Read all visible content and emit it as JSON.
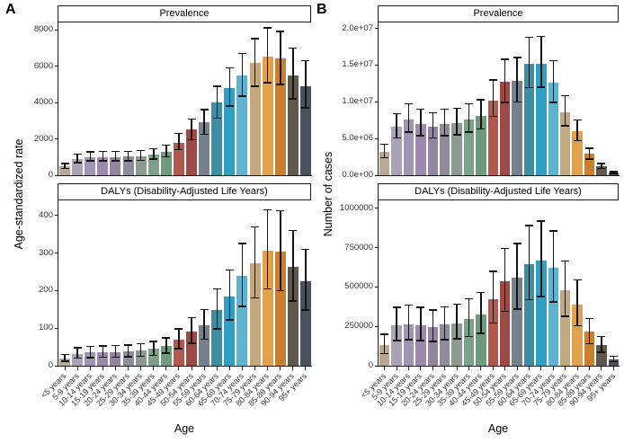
{
  "figure": {
    "panel_a_label": "A",
    "panel_b_label": "B",
    "left_y_axis_label": "Age-standardized rate",
    "right_y_axis_label": "Number of cases",
    "x_axis_label": "Age"
  },
  "palette": {
    "bar_colors_by_age": [
      "#b7a794",
      "#a8a3b6",
      "#9e94b3",
      "#9d89ab",
      "#93849f",
      "#8e8c9a",
      "#8c9a91",
      "#7da189",
      "#6f9a7c",
      "#b2584e",
      "#9c4a43",
      "#75828e",
      "#3e8ea3",
      "#2f9fc4",
      "#5fb3d0",
      "#c3a87d",
      "#e0a14b",
      "#c87f2f",
      "#5f584f",
      "#49525c"
    ],
    "error_bar_color": "#141414",
    "axis_color": "#1a1a1a"
  },
  "chart_data": [
    {
      "id": "a-prevalence-rate",
      "type": "bar",
      "panel": "A",
      "title": "Prevalence",
      "ylabel": "Age-standardized rate",
      "xlabel": "Age",
      "grid": false,
      "error_bars": true,
      "ylim": [
        0,
        8400
      ],
      "ytick_values": [
        0,
        2000,
        4000,
        6000,
        8000
      ],
      "ytick_labels": [
        "0",
        "2000",
        "4000",
        "6000",
        "8000"
      ],
      "categories": [
        "<5 years",
        "5-9 years",
        "10-14 years",
        "15-19 years",
        "20-24 years",
        "25-29 years",
        "30-34 years",
        "35-39 years",
        "40-44 years",
        "45-49 years",
        "50-54 years",
        "55-59 years",
        "60-64 years",
        "65-69 years",
        "70-74 years",
        "75-79 years",
        "80-84 years",
        "85-89 years",
        "90-94 years",
        "95+ years"
      ],
      "values": [
        500,
        900,
        1000,
        1000,
        1000,
        1020,
        1050,
        1150,
        1300,
        1800,
        2500,
        2900,
        4000,
        4800,
        5500,
        6200,
        6500,
        6400,
        5500,
        4900
      ],
      "err_low": [
        380,
        700,
        780,
        780,
        780,
        790,
        820,
        900,
        1010,
        1400,
        1950,
        2250,
        3150,
        3800,
        4350,
        4900,
        5100,
        5000,
        4200,
        3700
      ],
      "err_high": [
        650,
        1150,
        1280,
        1300,
        1300,
        1320,
        1350,
        1470,
        1650,
        2300,
        3100,
        3600,
        4900,
        5900,
        6700,
        7500,
        8100,
        7900,
        7000,
        6300
      ]
    },
    {
      "id": "a-dalys-rate",
      "type": "bar",
      "panel": "A",
      "title": "DALYs (Disability-Adjusted Life Years)",
      "ylabel": "Age-standardized rate",
      "xlabel": "Age",
      "grid": false,
      "error_bars": true,
      "ylim": [
        0,
        440
      ],
      "ytick_values": [
        0,
        100,
        200,
        300,
        400
      ],
      "ytick_labels": [
        "0",
        "100",
        "200",
        "300",
        "400"
      ],
      "categories": [
        "<5 years",
        "5-9 years",
        "10-14 years",
        "15-19 years",
        "20-24 years",
        "25-29 years",
        "30-34 years",
        "35-39 years",
        "40-44 years",
        "45-49 years",
        "50-54 years",
        "55-59 years",
        "60-64 years",
        "65-69 years",
        "70-74 years",
        "75-79 years",
        "80-84 years",
        "85-89 years",
        "90-94 years",
        "95+ years"
      ],
      "values": [
        20,
        32,
        36,
        36,
        37,
        38,
        40,
        45,
        52,
        70,
        92,
        108,
        148,
        185,
        238,
        272,
        305,
        303,
        262,
        225
      ],
      "err_low": [
        12,
        20,
        22,
        23,
        23,
        24,
        25,
        28,
        33,
        45,
        60,
        70,
        98,
        122,
        158,
        180,
        205,
        200,
        172,
        148
      ],
      "err_high": [
        30,
        48,
        52,
        53,
        54,
        55,
        58,
        64,
        74,
        98,
        128,
        150,
        205,
        255,
        325,
        370,
        415,
        412,
        360,
        310
      ]
    },
    {
      "id": "b-prevalence-cases",
      "type": "bar",
      "panel": "B",
      "title": "Prevalence",
      "ylabel": "Number of cases",
      "xlabel": "Age",
      "grid": false,
      "error_bars": true,
      "ylim": [
        0,
        20800000
      ],
      "ytick_values": [
        0,
        5000000,
        10000000,
        15000000,
        20000000
      ],
      "ytick_labels": [
        "0.0e+00",
        "5.0e+06",
        "1.0e+07",
        "1.5e+07",
        "2.0e+07"
      ],
      "categories": [
        "<5 years",
        "5-9 years",
        "10-14 years",
        "15-19 years",
        "20-24 years",
        "25-29 years",
        "30-34 years",
        "35-39 years",
        "40-44 years",
        "45-49 years",
        "50-54 years",
        "55-59 years",
        "60-64 years",
        "65-69 years",
        "70-74 years",
        "75-79 years",
        "80-84 years",
        "85-89 years",
        "90-94 years",
        "95+ years"
      ],
      "values": [
        3200000,
        6600000,
        7600000,
        7000000,
        6600000,
        7000000,
        7100000,
        7600000,
        8100000,
        10200000,
        12700000,
        12800000,
        15200000,
        15200000,
        12600000,
        8600000,
        6000000,
        2900000,
        1200000,
        350000
      ],
      "err_low": [
        2400000,
        5100000,
        5900000,
        5400000,
        5100000,
        5400000,
        5500000,
        5900000,
        6300000,
        8000000,
        9900000,
        10000000,
        11900000,
        12000000,
        9900000,
        6700000,
        4700000,
        2200000,
        900000,
        250000
      ],
      "err_high": [
        4200000,
        8400000,
        9700000,
        9000000,
        8500000,
        9000000,
        9100000,
        9700000,
        10300000,
        13000000,
        15800000,
        16000000,
        18800000,
        18900000,
        15600000,
        10800000,
        7500000,
        3700000,
        1600000,
        500000
      ]
    },
    {
      "id": "b-dalys-cases",
      "type": "bar",
      "panel": "B",
      "title": "DALYs (Disability-Adjusted Life Years)",
      "ylabel": "Number of cases",
      "xlabel": "Age",
      "grid": false,
      "error_bars": true,
      "ylim": [
        0,
        1050000
      ],
      "ytick_values": [
        0,
        250000,
        500000,
        750000,
        1000000
      ],
      "ytick_labels": [
        "0",
        "250000",
        "500000",
        "750000",
        "1000000"
      ],
      "categories": [
        "<5 years",
        "5-9 years",
        "10-14 years",
        "15-19 years",
        "20-24 years",
        "25-29 years",
        "30-34 years",
        "35-39 years",
        "40-44 years",
        "45-49 years",
        "50-54 years",
        "55-59 years",
        "60-64 years",
        "65-69 years",
        "70-74 years",
        "75-79 years",
        "80-84 years",
        "85-89 years",
        "90-94 years",
        "95+ years"
      ],
      "values": [
        130000,
        255000,
        265000,
        255000,
        245000,
        260000,
        270000,
        295000,
        325000,
        425000,
        535000,
        560000,
        645000,
        670000,
        620000,
        480000,
        390000,
        215000,
        130000,
        42000
      ],
      "err_low": [
        78000,
        160000,
        165000,
        160000,
        155000,
        165000,
        170000,
        185000,
        205000,
        270000,
        345000,
        360000,
        420000,
        440000,
        405000,
        315000,
        255000,
        140000,
        85000,
        27000
      ],
      "err_high": [
        200000,
        370000,
        385000,
        370000,
        355000,
        375000,
        390000,
        425000,
        465000,
        600000,
        745000,
        775000,
        890000,
        920000,
        855000,
        665000,
        545000,
        300000,
        185000,
        60000
      ]
    }
  ]
}
